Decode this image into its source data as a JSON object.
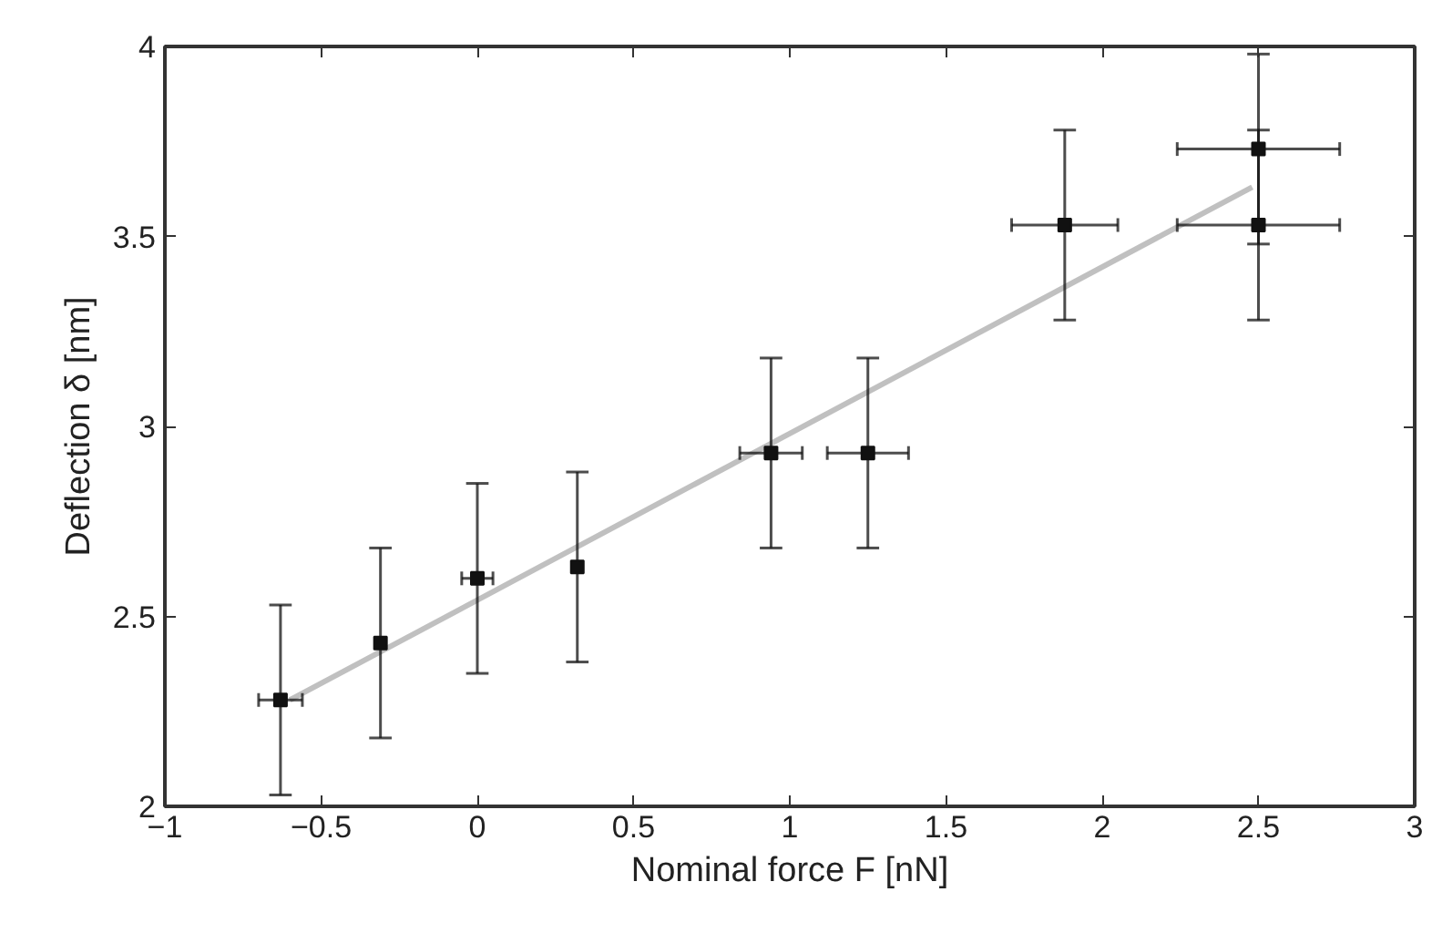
{
  "chart_data": {
    "type": "scatter",
    "xlabel": "Nominal force F [nN]",
    "ylabel": "Deflection δ [nm]",
    "xlim": [
      -1,
      3
    ],
    "ylim": [
      2,
      4
    ],
    "xticks": [
      -1,
      -0.5,
      0,
      0.5,
      1,
      1.5,
      2,
      2.5,
      3
    ],
    "yticks": [
      2,
      2.5,
      3,
      3.5,
      4
    ],
    "grid": false,
    "marker": "square",
    "series": [
      {
        "color": "#111111",
        "x": [
          -0.63,
          -0.31,
          0,
          0.32,
          0.94,
          1.25,
          1.88,
          2.5,
          2.5
        ],
        "values": [
          2.28,
          2.43,
          2.6,
          2.63,
          2.93,
          2.93,
          3.53,
          3.73,
          3.53
        ],
        "errors": [
          0.25,
          0.25,
          0.25,
          0.25,
          0.25,
          0.25,
          0.25,
          0.25,
          0.25
        ],
        "xerrors": [
          0.07,
          null,
          0.05,
          null,
          0.1,
          0.13,
          0.17,
          0.26,
          0.26
        ]
      },
      {
        "type": "line",
        "color": "#c0c0c0",
        "line_style": "solid",
        "marker": "none",
        "x": [
          -0.6,
          2.48
        ],
        "values": [
          2.28,
          3.63
        ]
      }
    ]
  }
}
